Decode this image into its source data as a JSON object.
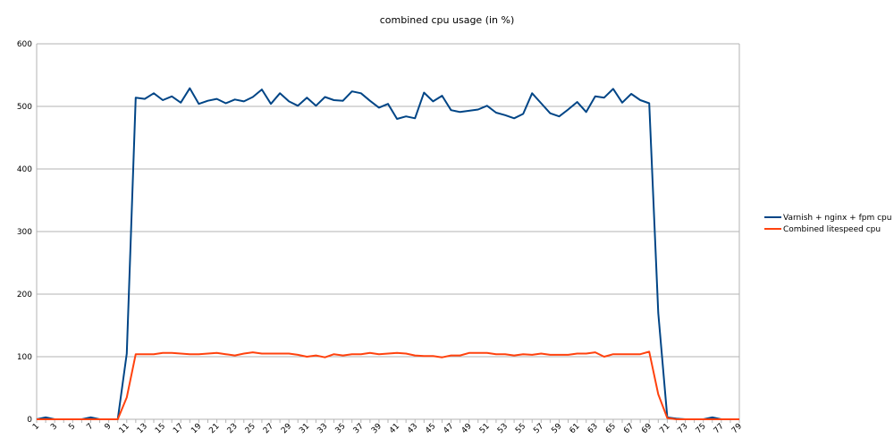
{
  "chart_data": {
    "type": "line",
    "title": "combined cpu usage (in %)",
    "xlabel": "",
    "ylabel": "",
    "ylim": [
      0,
      600
    ],
    "yticks": [
      0,
      100,
      200,
      300,
      400,
      500,
      600
    ],
    "x": [
      1,
      2,
      3,
      4,
      5,
      6,
      7,
      8,
      9,
      10,
      11,
      12,
      13,
      14,
      15,
      16,
      17,
      18,
      19,
      20,
      21,
      22,
      23,
      24,
      25,
      26,
      27,
      28,
      29,
      30,
      31,
      32,
      33,
      34,
      35,
      36,
      37,
      38,
      39,
      40,
      41,
      42,
      43,
      44,
      45,
      46,
      47,
      48,
      49,
      50,
      51,
      52,
      53,
      54,
      55,
      56,
      57,
      58,
      59,
      60,
      61,
      62,
      63,
      64,
      65,
      66,
      67,
      68,
      69,
      70,
      71,
      72,
      73,
      74,
      75,
      76,
      77,
      78,
      79
    ],
    "xtick_labels": [
      "1",
      "3",
      "5",
      "7",
      "9",
      "11",
      "13",
      "15",
      "17",
      "19",
      "21",
      "23",
      "25",
      "27",
      "29",
      "31",
      "33",
      "35",
      "37",
      "39",
      "41",
      "43",
      "45",
      "47",
      "49",
      "51",
      "53",
      "55",
      "57",
      "59",
      "61",
      "63",
      "65",
      "67",
      "69",
      "71",
      "73",
      "75",
      "77",
      "79"
    ],
    "grid": "horizontal",
    "legend_position": "right",
    "series": [
      {
        "name": "Varnish + nginx + fpm cpu",
        "color": "#004586",
        "values": [
          0,
          3,
          0,
          0,
          0,
          0,
          3,
          0,
          0,
          0,
          105,
          514,
          512,
          521,
          510,
          516,
          506,
          529,
          504,
          509,
          512,
          505,
          511,
          508,
          515,
          527,
          504,
          521,
          508,
          501,
          514,
          501,
          515,
          510,
          509,
          524,
          521,
          509,
          498,
          504,
          480,
          484,
          481,
          522,
          508,
          517,
          494,
          491,
          493,
          495,
          501,
          490,
          486,
          481,
          488,
          521,
          505,
          489,
          484,
          495,
          507,
          491,
          516,
          514,
          528,
          506,
          520,
          510,
          505,
          170,
          3,
          1,
          0,
          0,
          0,
          3,
          0,
          0,
          0
        ]
      },
      {
        "name": "Combined litespeed cpu",
        "color": "#ff420e",
        "values": [
          0,
          0,
          0,
          0,
          0,
          0,
          0,
          0,
          0,
          0,
          35,
          104,
          104,
          104,
          106,
          106,
          105,
          104,
          104,
          105,
          106,
          104,
          102,
          105,
          107,
          105,
          105,
          105,
          105,
          103,
          100,
          102,
          99,
          104,
          102,
          104,
          104,
          106,
          104,
          105,
          106,
          105,
          102,
          101,
          101,
          99,
          102,
          102,
          106,
          106,
          106,
          104,
          104,
          102,
          104,
          103,
          105,
          103,
          103,
          103,
          105,
          105,
          107,
          100,
          104,
          104,
          104,
          104,
          108,
          40,
          2,
          0,
          0,
          0,
          0,
          0,
          0,
          0,
          0
        ]
      }
    ]
  }
}
